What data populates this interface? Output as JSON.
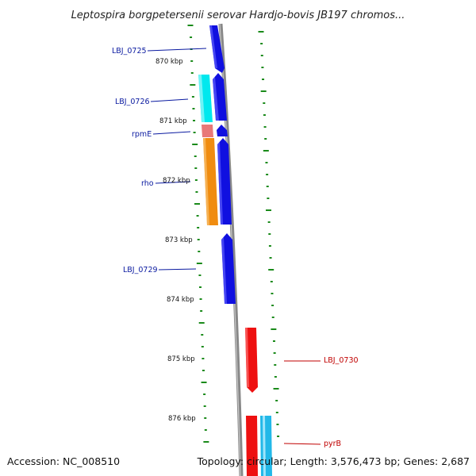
{
  "title": "Leptospira borgpetersenii serovar Hardjo-bovis JB197 chromos...",
  "footer": {
    "accession": "Accession: NC_008510",
    "topology": "Topology: circular; Length: 3,576,473 bp; Genes: 2,687"
  },
  "kbp_labels": [
    "870 kbp",
    "871 kbp",
    "872 kbp",
    "873 kbp",
    "874 kbp",
    "875 kbp",
    "876 kbp"
  ],
  "gene_labels": {
    "lbj0725": "LBJ_0725",
    "lbj0726": "LBJ_0726",
    "rpme": "rpmE",
    "rho": "rho",
    "lbj0729": "LBJ_0729",
    "lbj0730": "LBJ_0730",
    "pyrb": "pyrB"
  },
  "colors": {
    "blue_gene": "#1010e0",
    "cyan_gene": "#00e8ee",
    "orange_gene": "#f08c10",
    "pink_gene": "#e87878",
    "red_gene": "#ee1010",
    "light_blue_gene": "#22b8e8",
    "tick_green": "#1a8a1a",
    "backbone": "#888888"
  }
}
